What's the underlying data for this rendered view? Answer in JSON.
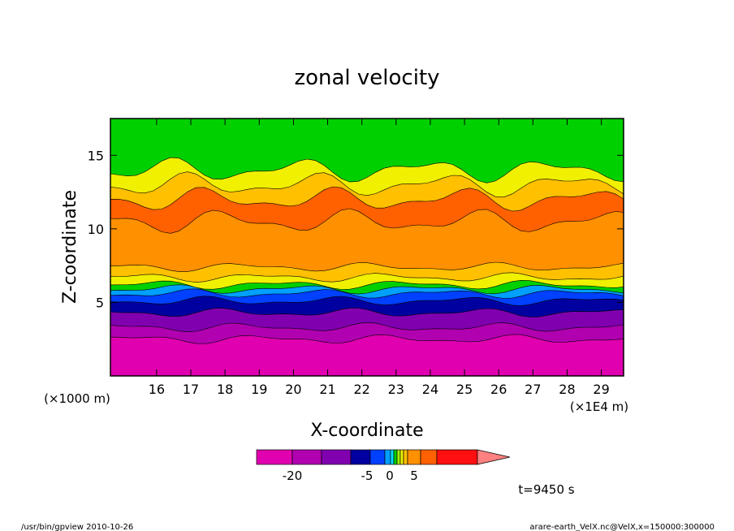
{
  "chart_data": {
    "type": "heatmap",
    "title": "zonal velocity",
    "xlabel": "X-coordinate",
    "ylabel": "Z-coordinate",
    "x_unit_left": "(×1000 m)",
    "x_unit_right": "(×1E4 m)",
    "x_ticks": [
      "16",
      "17",
      "18",
      "19",
      "20",
      "21",
      "22",
      "23",
      "24",
      "25",
      "26",
      "27",
      "28",
      "29"
    ],
    "y_ticks": [
      "5",
      "10",
      "15"
    ],
    "xlim": [
      15.0,
      30.0
    ],
    "ylim": [
      0,
      17.5
    ],
    "grid": false,
    "colorbar": {
      "tick_labels": [
        "-20",
        "-5",
        "0",
        "5"
      ],
      "levels": [
        -30,
        -25,
        -20,
        -15,
        -10,
        -5,
        -3,
        -2,
        -1,
        0,
        1,
        2,
        5,
        10,
        15
      ],
      "colors": [
        "#e000b0",
        "#b000b0",
        "#8000b0",
        "#0000a0",
        "#0040ff",
        "#00a0ff",
        "#00e0ff",
        "#00d000",
        "#a0f000",
        "#f0f000",
        "#ffc000",
        "#ff9000",
        "#ff6000",
        "#ff1010"
      ],
      "extend_color": "#ff8080"
    },
    "time_label": "t=9450 s",
    "bands_from_bottom": [
      {
        "z_top": 2.5,
        "color": "#e000b0"
      },
      {
        "z_top": 3.3,
        "color": "#b000b0"
      },
      {
        "z_top": 4.3,
        "color": "#8000b0"
      },
      {
        "z_top": 5.1,
        "color": "#0000a0"
      },
      {
        "z_top": 5.6,
        "color": "#0040ff"
      },
      {
        "z_top": 5.9,
        "color": "#00a0ff"
      },
      {
        "z_top": 6.2,
        "color": "#00d000"
      },
      {
        "z_top": 6.7,
        "color": "#f0f000"
      },
      {
        "z_top": 7.4,
        "color": "#ffc000"
      },
      {
        "z_top": 10.5,
        "color": "#ff9000"
      },
      {
        "z_top": 12.0,
        "color": "#ff6000"
      },
      {
        "z_top": 13.0,
        "color": "#ffc000"
      },
      {
        "z_top": 14.0,
        "color": "#f0f000"
      },
      {
        "z_top": 17.5,
        "color": "#00d000"
      }
    ]
  },
  "footer": {
    "left": "/usr/bin/gpview  2010-10-26",
    "right": "arare-earth_VelX.nc@VelX,x=150000:300000"
  }
}
